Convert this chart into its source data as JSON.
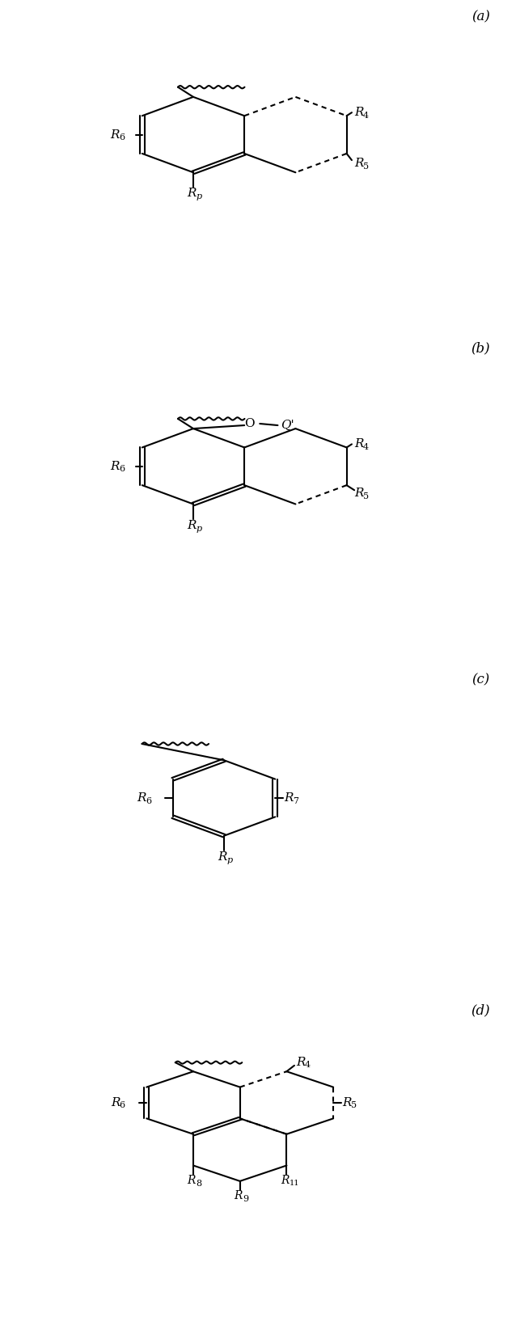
{
  "bg_color": "#ffffff",
  "line_color": "#000000",
  "fig_width": 6.43,
  "fig_height": 16.45,
  "panel_labels": [
    "(a)",
    "(b)",
    "(c)",
    "(d)"
  ],
  "lw": 1.5,
  "fontsize_R": 11,
  "fontsize_sub": 8,
  "fontsize_label": 12
}
